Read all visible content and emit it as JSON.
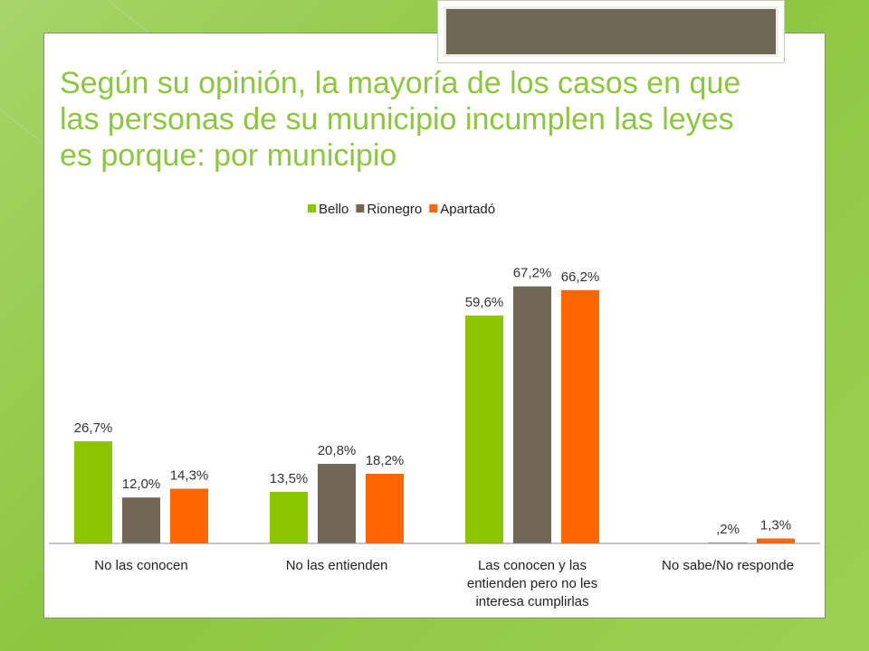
{
  "slide": {
    "title_lines": [
      "Según su opinión, la mayoría de los casos en que",
      "las personas de su municipio incumplen las leyes",
      "es porque: por municipio"
    ]
  },
  "chart_data": {
    "type": "bar",
    "categories": [
      [
        "No las conocen"
      ],
      [
        "No las entienden"
      ],
      [
        "Las conocen y las",
        "entienden pero no les",
        "interesa cumplirlas"
      ],
      [
        "No sabe/No responde"
      ]
    ],
    "series": [
      {
        "name": "Bello",
        "color": "#8cc600",
        "values": [
          26.7,
          13.5,
          59.6,
          0.0
        ],
        "labels": [
          "26,7%",
          "13,5%",
          "59,6%",
          ""
        ]
      },
      {
        "name": "Rionegro",
        "color": "#716757",
        "values": [
          12.0,
          20.8,
          67.2,
          0.2
        ],
        "labels": [
          "12,0%",
          "20,8%",
          "67,2%",
          ",2%"
        ]
      },
      {
        "name": "Apartadó",
        "color": "#ff6600",
        "values": [
          14.3,
          18.2,
          66.2,
          1.3
        ],
        "labels": [
          "14,3%",
          "18,2%",
          "66,2%",
          "1,3%"
        ]
      }
    ],
    "legend_position": "top",
    "grid": false,
    "ylim": [
      0,
      70
    ]
  }
}
